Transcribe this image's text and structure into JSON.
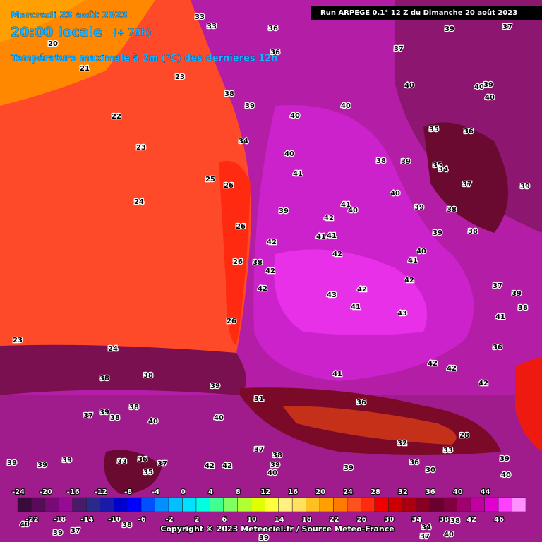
{
  "header": {
    "date": "Mercredi 23 août 2023",
    "time": "20:00 locale",
    "lead": "(+ 78h)",
    "subtitle": "Température maximale à 2m (°C) des dernières 12h",
    "run": "Run ARPEGE 0.1° 12 Z du Dimanche 20 août 2023"
  },
  "legend": {
    "top_labels": [
      -24,
      -20,
      -16,
      -12,
      -8,
      -4,
      0,
      4,
      8,
      12,
      16,
      20,
      24,
      28,
      32,
      36,
      40,
      44
    ],
    "bottom_labels": [
      -22,
      -18,
      -14,
      -10,
      -6,
      -2,
      2,
      6,
      10,
      14,
      18,
      22,
      26,
      30,
      34,
      38,
      42,
      46
    ],
    "colors": [
      "#3a0a3a",
      "#5a0a5a",
      "#780a78",
      "#960a96",
      "#4a1a6a",
      "#2a2a8a",
      "#1a1aaa",
      "#0000cc",
      "#0000ff",
      "#0050ff",
      "#0090ff",
      "#00c0ff",
      "#00e0ff",
      "#00ffe0",
      "#40ff90",
      "#80ff60",
      "#b0ff30",
      "#e0ff00",
      "#ffff40",
      "#fff080",
      "#ffe060",
      "#ffc020",
      "#ffa000",
      "#ff7a00",
      "#ff5020",
      "#ff2a10",
      "#ee0000",
      "#cc0000",
      "#a80010",
      "#880020",
      "#6a0030",
      "#800040",
      "#a00070",
      "#c000a0",
      "#e000d0",
      "#ff40ff",
      "#ff90ff"
    ]
  },
  "map_labels": [
    33,
    33,
    36,
    39,
    37,
    37,
    36,
    21,
    20,
    23,
    38,
    39,
    40,
    40,
    39,
    40,
    40,
    40,
    22,
    36,
    35,
    23,
    34,
    40,
    38,
    39,
    35,
    34,
    25,
    26,
    41,
    37,
    39,
    24,
    40,
    39,
    41,
    40,
    39,
    38,
    42,
    26,
    41,
    41,
    39,
    38,
    42,
    42,
    40,
    41,
    26,
    38,
    42,
    42,
    42,
    42,
    43,
    37,
    39,
    41,
    43,
    38,
    26,
    41,
    23,
    24,
    36,
    42,
    42,
    41,
    38,
    42,
    38,
    39,
    31,
    36,
    37,
    39,
    38,
    38,
    40,
    40,
    37,
    38,
    39,
    39,
    39,
    33,
    36,
    37,
    35,
    42,
    42,
    39,
    40,
    39,
    36,
    30,
    39,
    40,
    33,
    28,
    32,
    40,
    39,
    37,
    38,
    39,
    37,
    40,
    34,
    38
  ],
  "footer": "Copyright © 2023 Meteociel.fr / Source Meteo-France"
}
